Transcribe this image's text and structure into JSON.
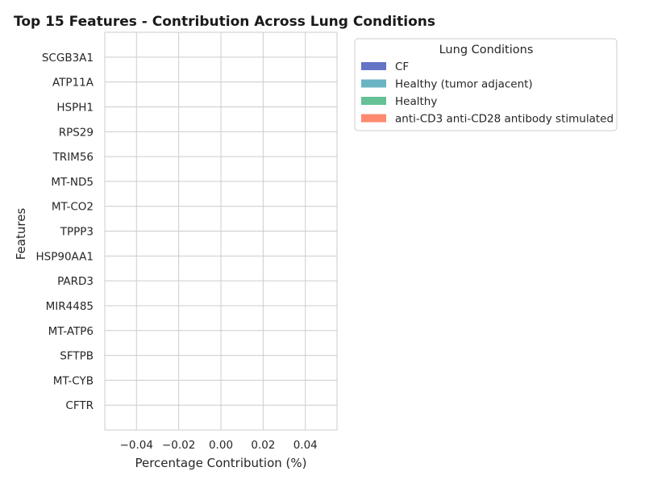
{
  "chart_data": {
    "type": "bar",
    "orientation": "horizontal",
    "stacked": true,
    "title": "Top 15 Features - Contribution Across Lung Conditions",
    "xlabel": "Percentage Contribution (%)",
    "ylabel": "Features",
    "categories": [
      "SCGB3A1",
      "ATP11A",
      "HSPH1",
      "RPS29",
      "TRIM56",
      "MT-ND5",
      "MT-CO2",
      "TPPP3",
      "HSP90AA1",
      "PARD3",
      "MIR4485",
      "MT-ATP6",
      "SFTPB",
      "MT-CYB",
      "CFTR"
    ],
    "series": [
      {
        "name": "CF",
        "color": "#6374c4",
        "values": [
          0,
          0,
          0,
          0,
          0,
          0,
          0,
          0,
          0,
          0,
          0,
          0,
          0,
          0,
          0
        ]
      },
      {
        "name": "Healthy (tumor adjacent)",
        "color": "#6ab4c3",
        "values": [
          0,
          0,
          0,
          0,
          0,
          0,
          0,
          0,
          0,
          0,
          0,
          0,
          0,
          0,
          0
        ]
      },
      {
        "name": "Healthy",
        "color": "#66c196",
        "values": [
          0,
          0,
          0,
          0,
          0,
          0,
          0,
          0,
          0,
          0,
          0,
          0,
          0,
          0,
          0
        ]
      },
      {
        "name": "anti-CD3 anti-CD28 antibody stimulated",
        "color": "#fd8a6f",
        "values": [
          0,
          0,
          0,
          0,
          0,
          0,
          0,
          0,
          0,
          0,
          0,
          0,
          0,
          0,
          0
        ]
      }
    ],
    "xlim": [
      -0.055,
      0.055
    ],
    "xticks": [
      -0.04,
      -0.02,
      0.0,
      0.02,
      0.04
    ],
    "xtick_labels": [
      "−0.04",
      "−0.02",
      "0.00",
      "0.02",
      "0.04"
    ],
    "grid": true,
    "legend": {
      "title": "Lung Conditions",
      "placement": "outside-right-top"
    }
  }
}
